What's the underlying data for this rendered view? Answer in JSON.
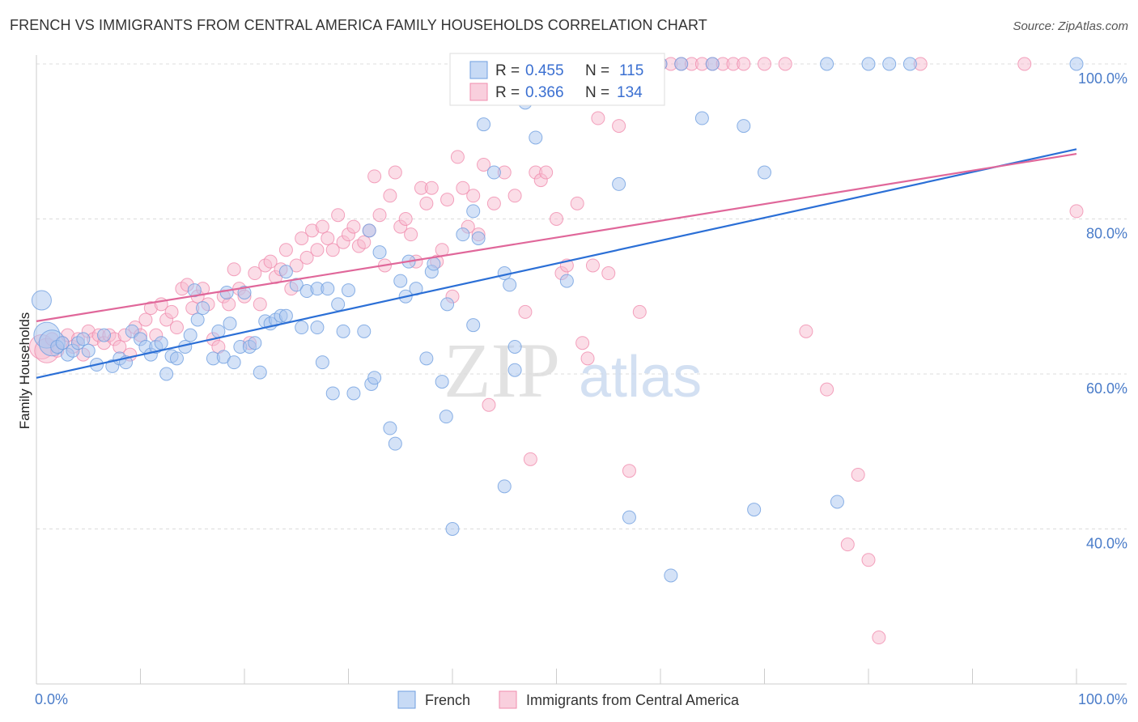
{
  "title": "FRENCH VS IMMIGRANTS FROM CENTRAL AMERICA FAMILY HOUSEHOLDS CORRELATION CHART",
  "source": "Source: ZipAtlas.com",
  "colors": {
    "blue": "#6f9fe0",
    "pink": "#f08cae",
    "blue_line": "#2b6fd6",
    "pink_line": "#e0679a",
    "tick": "#4a7cc9"
  },
  "chart_data": {
    "type": "scatter",
    "title": "FRENCH VS IMMIGRANTS FROM CENTRAL AMERICA FAMILY HOUSEHOLDS CORRELATION CHART",
    "xlabel": "",
    "ylabel": "Family Households",
    "xlim": [
      0,
      100
    ],
    "ylim": [
      20,
      102
    ],
    "x_tick_labels": [
      "0.0%",
      "100.0%"
    ],
    "y_ticks": [
      40,
      60,
      80,
      100
    ],
    "y_tick_labels": [
      "40.0%",
      "60.0%",
      "80.0%",
      "100.0%"
    ],
    "grid": true,
    "legend_top": [
      {
        "label_r": "R = ",
        "r": "0.455",
        "label_n": "N = ",
        "n": "115"
      },
      {
        "label_r": "R = ",
        "r": "0.366",
        "label_n": "N = ",
        "n": "134"
      }
    ],
    "series": [
      {
        "name": "French",
        "trend": [
          [
            0,
            59.5
          ],
          [
            100,
            89.0
          ]
        ],
        "points": [
          [
            0.5,
            69.5
          ],
          [
            1,
            65
          ],
          [
            1.5,
            64
          ],
          [
            2,
            63.5
          ],
          [
            2.5,
            64
          ],
          [
            3,
            62.5
          ],
          [
            3.5,
            63
          ],
          [
            4,
            64
          ],
          [
            4.5,
            64.5
          ],
          [
            5,
            63
          ],
          [
            5.8,
            61.2
          ],
          [
            6.5,
            65
          ],
          [
            7.3,
            61
          ],
          [
            8,
            62
          ],
          [
            8.6,
            61.5
          ],
          [
            9.2,
            65.5
          ],
          [
            10,
            64.5
          ],
          [
            10.5,
            63.5
          ],
          [
            11,
            62.5
          ],
          [
            11.5,
            63.5
          ],
          [
            12,
            64
          ],
          [
            12.5,
            60
          ],
          [
            13,
            62.3
          ],
          [
            13.5,
            62
          ],
          [
            14.3,
            63.5
          ],
          [
            14.8,
            65
          ],
          [
            15.5,
            67
          ],
          [
            15.2,
            70.8
          ],
          [
            16,
            68.5
          ],
          [
            17,
            62
          ],
          [
            17.5,
            65.5
          ],
          [
            18,
            62.2
          ],
          [
            18.6,
            66.5
          ],
          [
            18.3,
            70.5
          ],
          [
            19,
            61.5
          ],
          [
            19.6,
            63.5
          ],
          [
            20,
            70.5
          ],
          [
            20.5,
            63.5
          ],
          [
            21,
            64
          ],
          [
            21.5,
            60.2
          ],
          [
            22,
            66.8
          ],
          [
            22.5,
            66.5
          ],
          [
            23,
            67
          ],
          [
            23.5,
            67.5
          ],
          [
            24,
            67.5
          ],
          [
            24,
            73.2
          ],
          [
            25,
            71.5
          ],
          [
            25.5,
            66
          ],
          [
            26,
            70.7
          ],
          [
            27,
            66
          ],
          [
            27,
            71
          ],
          [
            27.5,
            61.5
          ],
          [
            28,
            71
          ],
          [
            29,
            69
          ],
          [
            28.5,
            57.5
          ],
          [
            29.5,
            65.5
          ],
          [
            30,
            70.8
          ],
          [
            30.5,
            57.5
          ],
          [
            31.5,
            65.5
          ],
          [
            32,
            78.5
          ],
          [
            32.2,
            58.7
          ],
          [
            32.5,
            59.5
          ],
          [
            33,
            75.7
          ],
          [
            34,
            53
          ],
          [
            34.5,
            51
          ],
          [
            35,
            72
          ],
          [
            35.5,
            70
          ],
          [
            35.8,
            74.5
          ],
          [
            36.5,
            71
          ],
          [
            37.5,
            62
          ],
          [
            38,
            73.2
          ],
          [
            38.2,
            74.2
          ],
          [
            39,
            59
          ],
          [
            39.4,
            54.5
          ],
          [
            39.5,
            69
          ],
          [
            40,
            40
          ],
          [
            41,
            78
          ],
          [
            42,
            81
          ],
          [
            42,
            66.3
          ],
          [
            42.5,
            77.5
          ],
          [
            43,
            92.2
          ],
          [
            44,
            86
          ],
          [
            45,
            73
          ],
          [
            45.5,
            71.5
          ],
          [
            45,
            45.5
          ],
          [
            46,
            63.5
          ],
          [
            46,
            60.5
          ],
          [
            47,
            95
          ],
          [
            48,
            90.5
          ],
          [
            51,
            72
          ],
          [
            53,
            100
          ],
          [
            55,
            100
          ],
          [
            56,
            84.5
          ],
          [
            57,
            41.5
          ],
          [
            60,
            100
          ],
          [
            61,
            34
          ],
          [
            62,
            100
          ],
          [
            64,
            93
          ],
          [
            65,
            100
          ],
          [
            68,
            92
          ],
          [
            69,
            42.5
          ],
          [
            70,
            86
          ],
          [
            76,
            100
          ],
          [
            77,
            43.5
          ],
          [
            80,
            100
          ],
          [
            82,
            100
          ],
          [
            84,
            100
          ],
          [
            100,
            100
          ]
        ]
      },
      {
        "name": "Immigrants from Central America",
        "trend": [
          [
            0,
            66.8
          ],
          [
            100,
            88.4
          ]
        ],
        "points": [
          [
            0.5,
            63.5
          ],
          [
            1,
            63
          ],
          [
            1.5,
            64.5
          ],
          [
            2,
            63
          ],
          [
            2.5,
            64
          ],
          [
            3,
            65
          ],
          [
            3.5,
            63.5
          ],
          [
            4,
            64.5
          ],
          [
            4.5,
            62.5
          ],
          [
            5,
            65.5
          ],
          [
            5.5,
            64.5
          ],
          [
            6,
            65
          ],
          [
            6.5,
            64
          ],
          [
            7,
            65
          ],
          [
            7.5,
            64.5
          ],
          [
            8,
            63.5
          ],
          [
            8.5,
            65
          ],
          [
            9,
            62.5
          ],
          [
            9.5,
            66
          ],
          [
            10,
            65
          ],
          [
            10.5,
            67
          ],
          [
            11,
            68.5
          ],
          [
            11.5,
            65
          ],
          [
            12,
            69
          ],
          [
            12.5,
            67
          ],
          [
            13,
            68
          ],
          [
            13.5,
            66
          ],
          [
            14,
            71
          ],
          [
            14.5,
            71.5
          ],
          [
            15,
            68.5
          ],
          [
            15.5,
            70
          ],
          [
            16,
            71
          ],
          [
            16.5,
            69
          ],
          [
            17,
            64.5
          ],
          [
            17.5,
            63.5
          ],
          [
            18,
            70
          ],
          [
            18.5,
            69
          ],
          [
            19,
            73.5
          ],
          [
            19.5,
            71
          ],
          [
            20,
            70
          ],
          [
            20.5,
            64
          ],
          [
            21,
            73
          ],
          [
            21.5,
            69
          ],
          [
            22,
            74
          ],
          [
            22.5,
            74.5
          ],
          [
            23,
            72.5
          ],
          [
            23.5,
            73.5
          ],
          [
            24,
            76
          ],
          [
            24.5,
            71
          ],
          [
            25,
            74
          ],
          [
            25.5,
            77.5
          ],
          [
            26,
            75
          ],
          [
            26.5,
            78.5
          ],
          [
            27,
            76
          ],
          [
            27.5,
            79
          ],
          [
            28,
            77.5
          ],
          [
            28.5,
            76
          ],
          [
            29,
            80.5
          ],
          [
            29.5,
            77
          ],
          [
            30,
            78
          ],
          [
            30.5,
            79
          ],
          [
            31,
            76.5
          ],
          [
            31.5,
            77
          ],
          [
            32,
            78.5
          ],
          [
            32.5,
            85.5
          ],
          [
            33,
            80.5
          ],
          [
            33.5,
            74
          ],
          [
            34,
            83
          ],
          [
            34.5,
            86
          ],
          [
            35,
            79
          ],
          [
            35.5,
            80
          ],
          [
            36,
            78
          ],
          [
            36.5,
            74.5
          ],
          [
            37,
            84
          ],
          [
            37.5,
            82
          ],
          [
            38,
            84
          ],
          [
            38.5,
            74.5
          ],
          [
            39,
            76
          ],
          [
            39.5,
            82.5
          ],
          [
            40,
            70
          ],
          [
            40.5,
            88
          ],
          [
            41,
            84
          ],
          [
            41.5,
            79
          ],
          [
            42,
            83
          ],
          [
            42.5,
            78
          ],
          [
            43,
            87
          ],
          [
            43.5,
            56
          ],
          [
            44,
            82
          ],
          [
            45,
            86
          ],
          [
            46,
            83
          ],
          [
            47,
            68
          ],
          [
            47.5,
            49
          ],
          [
            48,
            86
          ],
          [
            48.5,
            85
          ],
          [
            49,
            86
          ],
          [
            50,
            80
          ],
          [
            50.5,
            73
          ],
          [
            51,
            74
          ],
          [
            52,
            82
          ],
          [
            52.5,
            64
          ],
          [
            53,
            62
          ],
          [
            53.5,
            74
          ],
          [
            54,
            93
          ],
          [
            55,
            73
          ],
          [
            56,
            92
          ],
          [
            57,
            47.5
          ],
          [
            58,
            68
          ],
          [
            59,
            99
          ],
          [
            60,
            100
          ],
          [
            61,
            100
          ],
          [
            62,
            100
          ],
          [
            63,
            100
          ],
          [
            64,
            100
          ],
          [
            65,
            100
          ],
          [
            66,
            100
          ],
          [
            67,
            100
          ],
          [
            68,
            100
          ],
          [
            70,
            100
          ],
          [
            72,
            100
          ],
          [
            74,
            65.5
          ],
          [
            76,
            58
          ],
          [
            78,
            38
          ],
          [
            79,
            47
          ],
          [
            80,
            36
          ],
          [
            81,
            26
          ],
          [
            85,
            100
          ],
          [
            95,
            100
          ],
          [
            100,
            81
          ]
        ]
      }
    ]
  },
  "bottom_legend": [
    "French",
    "Immigrants from Central America"
  ],
  "watermark": {
    "zip": "ZIP",
    "atlas": "atlas"
  }
}
